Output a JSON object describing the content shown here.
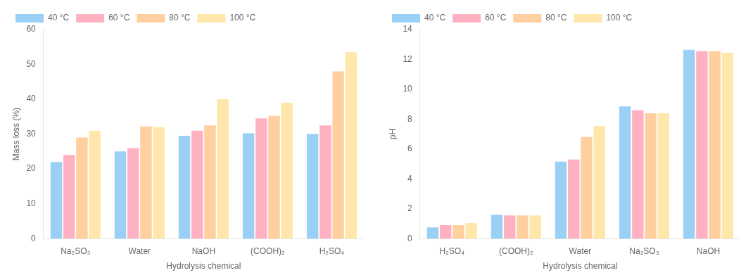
{
  "chart_data": [
    {
      "type": "bar",
      "categories": [
        "Na₂SO₃",
        "Water",
        "NaOH",
        "(COOH)₂",
        "H₂SO₄"
      ],
      "series": [
        {
          "name": "40 °C",
          "values": [
            22.0,
            25.0,
            29.5,
            30.2,
            30.0
          ]
        },
        {
          "name": "60 °C",
          "values": [
            24.0,
            26.0,
            31.0,
            34.5,
            32.5
          ]
        },
        {
          "name": "80 °C",
          "values": [
            29.0,
            32.2,
            32.5,
            35.2,
            48.0
          ]
        },
        {
          "name": "100 °C",
          "values": [
            31.0,
            32.0,
            40.0,
            39.0,
            53.5
          ]
        }
      ],
      "xlabel": "Hydrolysis chemical",
      "ylabel": "Mass loss (%)",
      "ylim": [
        0,
        60
      ],
      "yticks": [
        0,
        10,
        20,
        30,
        40,
        50,
        60
      ],
      "grid": false,
      "legend": "upper left"
    },
    {
      "type": "bar",
      "categories": [
        "H₂SO₄",
        "(COOH)₂",
        "Water",
        "Na₂SO₃",
        "NaOH"
      ],
      "series": [
        {
          "name": "40 °C",
          "values": [
            0.75,
            1.6,
            5.15,
            8.85,
            12.65
          ]
        },
        {
          "name": "60 °C",
          "values": [
            0.9,
            1.55,
            5.3,
            8.6,
            12.55
          ]
        },
        {
          "name": "80 °C",
          "values": [
            0.9,
            1.55,
            6.8,
            8.4,
            12.55
          ]
        },
        {
          "name": "100 °C",
          "values": [
            1.05,
            1.55,
            7.55,
            8.4,
            12.45
          ]
        }
      ],
      "xlabel": "Hydrolysis chemical",
      "ylabel": "pH",
      "ylim": [
        0,
        14
      ],
      "yticks": [
        0,
        2,
        4,
        6,
        8,
        10,
        12,
        14
      ],
      "grid": false,
      "legend": "upper left"
    }
  ]
}
